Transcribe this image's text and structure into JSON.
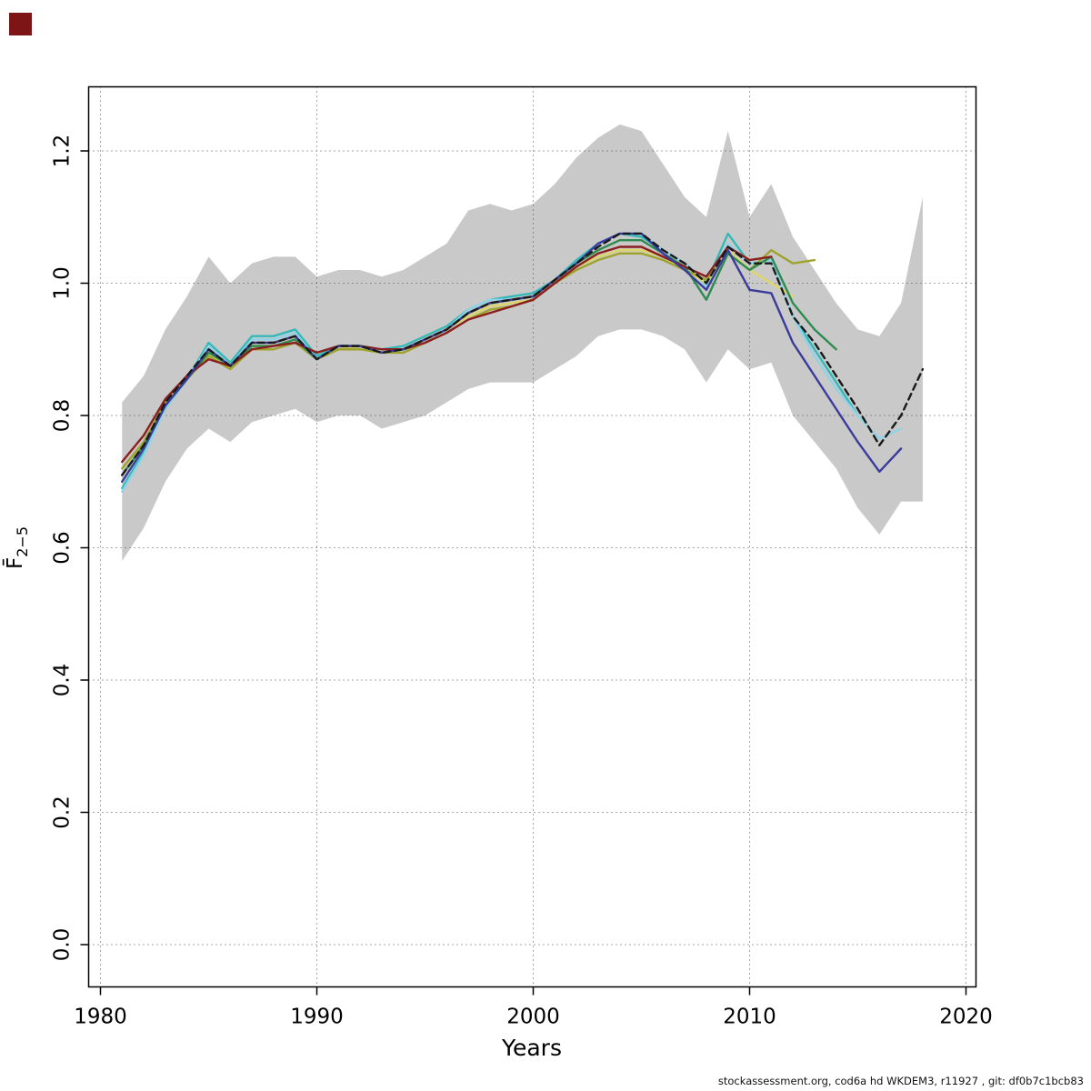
{
  "page": {
    "corner_marker_color": "#7d1416"
  },
  "footer": {
    "text": "stockassessment.org, cod6a hd WKDEM3, r11927 , git: df0b7c1bcb83"
  },
  "chart_data": {
    "type": "line",
    "title": "",
    "xlabel": "Years",
    "ylabel": {
      "main": "F",
      "sub": "2−5",
      "overline": true
    },
    "xlim": [
      1978.4,
      2021.6
    ],
    "ylim": [
      -0.06,
      1.3
    ],
    "xticks": [
      1980,
      1990,
      2000,
      2010,
      2020
    ],
    "yticks": [
      0.0,
      0.2,
      0.4,
      0.6,
      0.8,
      1.0,
      1.2
    ],
    "grid": "dotted",
    "legend": "none",
    "band": {
      "name": "confidence-band",
      "color": "#c9c9c9",
      "start_year": 1981,
      "lower": [
        0.58,
        0.63,
        0.7,
        0.75,
        0.78,
        0.76,
        0.79,
        0.8,
        0.81,
        0.79,
        0.8,
        0.8,
        0.78,
        0.79,
        0.8,
        0.82,
        0.84,
        0.85,
        0.85,
        0.85,
        0.87,
        0.89,
        0.92,
        0.93,
        0.93,
        0.92,
        0.9,
        0.85,
        0.9,
        0.87,
        0.88,
        0.8,
        0.76,
        0.72,
        0.66,
        0.62,
        0.67,
        0.67
      ],
      "upper": [
        0.82,
        0.86,
        0.93,
        0.98,
        1.04,
        1.0,
        1.03,
        1.04,
        1.04,
        1.01,
        1.02,
        1.02,
        1.01,
        1.02,
        1.04,
        1.06,
        1.11,
        1.12,
        1.11,
        1.12,
        1.15,
        1.19,
        1.22,
        1.24,
        1.23,
        1.18,
        1.13,
        1.1,
        1.23,
        1.1,
        1.15,
        1.07,
        1.02,
        0.97,
        0.93,
        0.92,
        0.97,
        1.13
      ]
    },
    "series": [
      {
        "name": "retro-turquoise",
        "color": "#35b8b8",
        "dash": "",
        "start_year": 1981,
        "values": [
          0.69,
          0.745,
          0.81,
          0.855,
          0.91,
          0.88,
          0.92,
          0.92,
          0.93,
          0.89,
          0.905,
          0.905,
          0.9,
          0.905,
          0.92,
          0.935,
          0.96,
          0.975,
          0.98,
          0.985,
          1.005,
          1.035,
          1.06,
          1.075,
          1.07,
          1.05,
          1.03,
          1.0,
          1.075,
          1.03,
          1.035,
          0.95,
          0.9,
          0.85,
          0.8
        ]
      },
      {
        "name": "retro-lightblue",
        "color": "#8fd3e8",
        "dash": "",
        "start_year": 1981,
        "values": [
          0.685,
          0.74,
          0.81,
          0.855,
          0.905,
          0.875,
          0.915,
          0.915,
          0.925,
          0.885,
          0.905,
          0.905,
          0.895,
          0.9,
          0.915,
          0.93,
          0.96,
          0.975,
          0.975,
          0.98,
          1.005,
          1.03,
          1.06,
          1.075,
          1.075,
          1.05,
          1.03,
          0.995,
          1.06,
          1.03,
          1.035,
          0.95,
          0.89,
          0.84,
          0.8,
          0.765,
          0.78
        ]
      },
      {
        "name": "retro-yellow",
        "color": "#ddd66a",
        "dash": "",
        "start_year": 1981,
        "values": [
          0.7,
          0.75,
          0.815,
          0.855,
          0.895,
          0.87,
          0.905,
          0.905,
          0.915,
          0.885,
          0.905,
          0.9,
          0.895,
          0.9,
          0.915,
          0.93,
          0.95,
          0.965,
          0.97,
          0.975,
          1.0,
          1.025,
          1.04,
          1.05,
          1.05,
          1.04,
          1.02,
          1.0,
          1.05,
          1.02,
          1.0,
          0.98
        ]
      },
      {
        "name": "retro-olive",
        "color": "#9fa32b",
        "dash": "",
        "start_year": 1981,
        "values": [
          0.72,
          0.76,
          0.82,
          0.855,
          0.89,
          0.87,
          0.9,
          0.9,
          0.91,
          0.885,
          0.9,
          0.9,
          0.895,
          0.895,
          0.91,
          0.925,
          0.945,
          0.96,
          0.965,
          0.975,
          1.0,
          1.02,
          1.035,
          1.045,
          1.045,
          1.035,
          1.02,
          1.005,
          1.045,
          1.02,
          1.05,
          1.03,
          1.035
        ]
      },
      {
        "name": "retro-green",
        "color": "#2e8b50",
        "dash": "",
        "start_year": 1981,
        "values": [
          0.71,
          0.755,
          0.815,
          0.855,
          0.895,
          0.875,
          0.905,
          0.905,
          0.915,
          0.885,
          0.905,
          0.905,
          0.895,
          0.9,
          0.915,
          0.93,
          0.955,
          0.97,
          0.975,
          0.98,
          1.005,
          1.03,
          1.05,
          1.065,
          1.065,
          1.045,
          1.025,
          0.975,
          1.045,
          1.02,
          1.04,
          0.97,
          0.93,
          0.9
        ]
      },
      {
        "name": "retro-darkred",
        "color": "#8b1f1f",
        "dash": "",
        "start_year": 1981,
        "values": [
          0.73,
          0.77,
          0.825,
          0.86,
          0.885,
          0.875,
          0.9,
          0.905,
          0.91,
          0.895,
          0.905,
          0.905,
          0.9,
          0.9,
          0.91,
          0.925,
          0.945,
          0.955,
          0.965,
          0.975,
          1.0,
          1.025,
          1.045,
          1.055,
          1.055,
          1.04,
          1.025,
          1.01,
          1.055,
          1.035,
          1.04
        ]
      },
      {
        "name": "retro-navy",
        "color": "#3b3b9e",
        "dash": "",
        "start_year": 1981,
        "values": [
          0.7,
          0.75,
          0.815,
          0.855,
          0.9,
          0.875,
          0.91,
          0.91,
          0.92,
          0.885,
          0.905,
          0.905,
          0.895,
          0.9,
          0.915,
          0.93,
          0.955,
          0.97,
          0.975,
          0.98,
          1.005,
          1.03,
          1.06,
          1.075,
          1.075,
          1.045,
          1.02,
          0.99,
          1.05,
          0.99,
          0.985,
          0.91,
          0.86,
          0.81,
          0.76,
          0.715,
          0.75
        ]
      },
      {
        "name": "base-run-dashed",
        "color": "#1a1a1a",
        "dash": "7 5",
        "start_year": 1981,
        "values": [
          0.71,
          0.755,
          0.82,
          0.86,
          0.9,
          0.875,
          0.91,
          0.91,
          0.92,
          0.885,
          0.905,
          0.905,
          0.895,
          0.9,
          0.915,
          0.93,
          0.955,
          0.97,
          0.975,
          0.98,
          1.005,
          1.03,
          1.055,
          1.075,
          1.075,
          1.05,
          1.03,
          1.0,
          1.055,
          1.03,
          1.03,
          0.95,
          0.91,
          0.86,
          0.81,
          0.755,
          0.8,
          0.87
        ]
      }
    ]
  }
}
